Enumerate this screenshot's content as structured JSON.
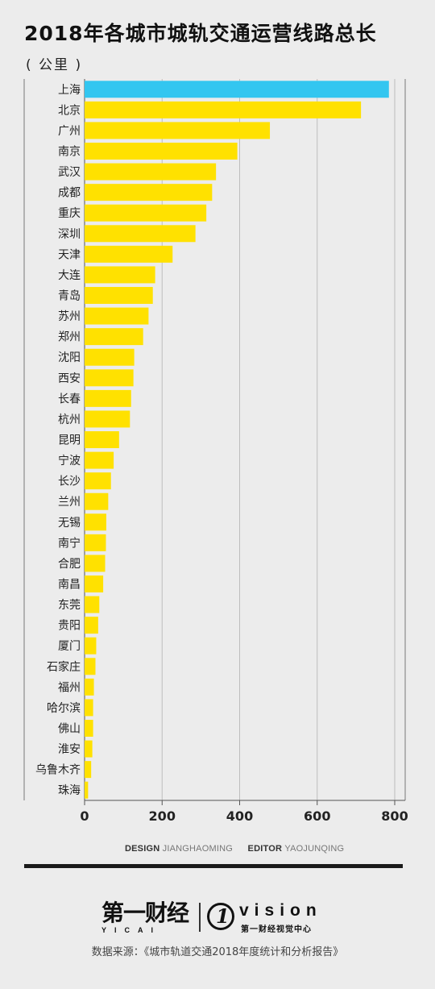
{
  "title": "2018年各城市城轨交通运营线路总长",
  "unit": "( 公里 )",
  "credits": {
    "design_label": "DESIGN",
    "design_name": "JIANGHAOMING",
    "editor_label": "EDITOR",
    "editor_name": "YAOJUNQING"
  },
  "logos": {
    "yicai_main": "第一财经",
    "yicai_sub": "YICAI",
    "vision_number": "1",
    "vision_word": "vision",
    "vision_cn": "第一财经视觉中心"
  },
  "source": "数据来源：《城市轨道交通2018年度统计和分析报告》",
  "colors": {
    "highlight": "#33c6f0",
    "bar": "#ffe100",
    "background": "#ececec"
  },
  "chart_data": {
    "type": "bar",
    "orientation": "horizontal",
    "highlight_index": 0,
    "categories": [
      "上海",
      "北京",
      "广州",
      "南京",
      "武汉",
      "成都",
      "重庆",
      "深圳",
      "天津",
      "大连",
      "青岛",
      "苏州",
      "郑州",
      "沈阳",
      "西安",
      "长春",
      "杭州",
      "昆明",
      "宁波",
      "长沙",
      "兰州",
      "无锡",
      "南宁",
      "合肥",
      "南昌",
      "东莞",
      "贵阳",
      "厦门",
      "石家庄",
      "福州",
      "哈尔滨",
      "佛山",
      "淮安",
      "乌鲁木齐",
      "珠海"
    ],
    "values": [
      785,
      713,
      478,
      394,
      339,
      329,
      314,
      286,
      227,
      182,
      176,
      165,
      151,
      128,
      126,
      120,
      117,
      89,
      75,
      68,
      61,
      56,
      55,
      53,
      48,
      38,
      35,
      30,
      28,
      24,
      22,
      22,
      20,
      17,
      9
    ],
    "xticks": [
      0,
      200,
      400,
      600,
      800
    ],
    "xlim": [
      0,
      800
    ],
    "grid": true
  }
}
